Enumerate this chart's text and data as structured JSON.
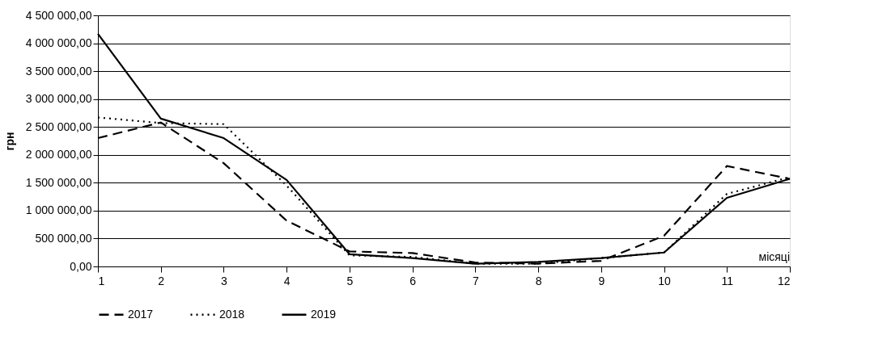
{
  "chart_data": {
    "type": "line",
    "xlabel": "місяці",
    "ylabel": "грн",
    "x": [
      1,
      2,
      3,
      4,
      5,
      6,
      7,
      8,
      9,
      10,
      11,
      12
    ],
    "series": [
      {
        "name": "2017",
        "color": "#000000",
        "line_style": "dashed",
        "values": [
          2300000,
          2580000,
          1850000,
          820000,
          270000,
          240000,
          70000,
          50000,
          100000,
          550000,
          1800000,
          1570000
        ]
      },
      {
        "name": "2018",
        "color": "#000000",
        "line_style": "dotted",
        "values": [
          2670000,
          2570000,
          2550000,
          1450000,
          200000,
          170000,
          50000,
          50000,
          150000,
          250000,
          1300000,
          1600000
        ]
      },
      {
        "name": "2019",
        "color": "#000000",
        "line_style": "solid",
        "values": [
          4170000,
          2650000,
          2300000,
          1550000,
          220000,
          150000,
          50000,
          80000,
          150000,
          250000,
          1230000,
          1570000
        ]
      }
    ],
    "xlim": [
      1,
      12
    ],
    "xticks": [
      1,
      2,
      3,
      4,
      5,
      6,
      7,
      8,
      9,
      10,
      11,
      12
    ],
    "ylim": [
      0,
      4500000
    ],
    "yticks": [
      {
        "value": 0,
        "label": "0,00"
      },
      {
        "value": 500000,
        "label": "500 000,00"
      },
      {
        "value": 1000000,
        "label": "1 000 000,00"
      },
      {
        "value": 1500000,
        "label": "1 500 000,00"
      },
      {
        "value": 2000000,
        "label": "2 000 000,00"
      },
      {
        "value": 2500000,
        "label": "2 500 000,00"
      },
      {
        "value": 3000000,
        "label": "3 000 000,00"
      },
      {
        "value": 3500000,
        "label": "3 500 000,00"
      },
      {
        "value": 4000000,
        "label": "4 000 000,00"
      },
      {
        "value": 4500000,
        "label": "4 500 000,00"
      }
    ],
    "grid": "y",
    "legend": "bottom",
    "marker": "none"
  }
}
